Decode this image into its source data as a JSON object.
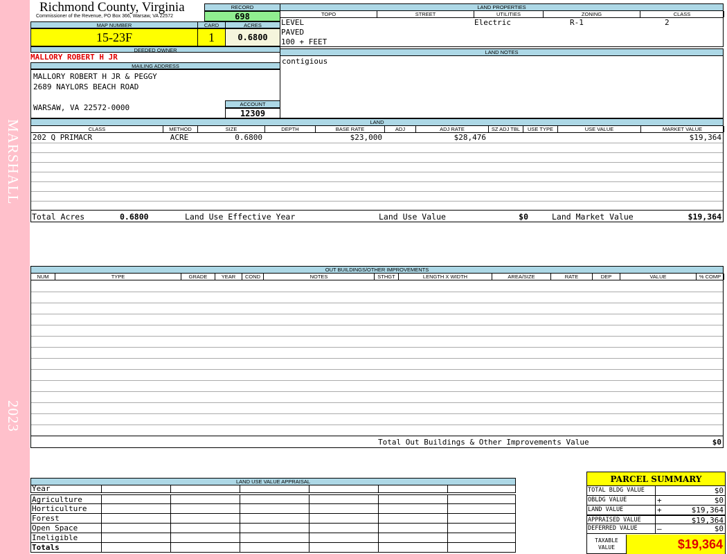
{
  "side": {
    "name": "MARSHALL",
    "year": "2023",
    "color": "#ffc0cb"
  },
  "header": {
    "title": "Richmond County, Virginia",
    "subtitle": "Commissioner of the Revenue, PO Box 366, Warsaw, VA 22572"
  },
  "record": {
    "label": "RECORD",
    "value": "698"
  },
  "map": {
    "label": "MAP NUMBER",
    "value": "15-23F",
    "card_label": "CARD",
    "card": "1",
    "acres_label": "ACRES",
    "acres": "0.6800"
  },
  "owner": {
    "label": "DEEDED OWNER",
    "value": "MALLORY ROBERT H JR"
  },
  "mailing": {
    "label": "MAILING ADDRESS",
    "lines": [
      "MALLORY ROBERT H JR & PEGGY",
      "2689 NAYLORS BEACH ROAD",
      "",
      "WARSAW, VA 22572-0000"
    ]
  },
  "account": {
    "label": "ACCOUNT",
    "value": "12309"
  },
  "land_properties": {
    "label": "LAND PROPERTIES",
    "columns": [
      "TOPO",
      "STREET",
      "UTILITIES",
      "ZONING",
      "CLASS"
    ],
    "topo": [
      "LEVEL",
      "PAVED",
      "100 + FEET"
    ],
    "utilities": "Electric",
    "zoning": "R-1",
    "class": "2"
  },
  "land_notes": {
    "label": "LAND NOTES",
    "value": "contigious"
  },
  "land": {
    "label": "LAND",
    "columns": [
      "CLASS",
      "METHOD",
      "SIZE",
      "DEPTH",
      "BASE RATE",
      "ADJ",
      "ADJ RATE",
      "SZ ADJ TBL",
      "USE TYPE",
      "USE VALUE",
      "MARKET VALUE"
    ],
    "rows": [
      [
        "202 Q PRIMACR",
        "ACRE",
        "0.6800",
        "",
        "$23,000",
        "",
        "$28,476",
        "",
        "",
        "",
        "$19,364"
      ]
    ],
    "totals": {
      "acres_label": "Total Acres",
      "acres": "0.6800",
      "eff_year_label": "Land Use Effective Year",
      "eff_year": "",
      "use_value_label": "Land Use Value",
      "use_value": "$0",
      "market_label": "Land Market Value",
      "market": "$19,364"
    }
  },
  "outbuildings": {
    "label": "OUT BUILDINGS/OTHER IMPROVEMENTS",
    "columns": [
      "NUM",
      "TYPE",
      "GRADE",
      "YEAR",
      "COND",
      "NOTES",
      "STHGT",
      "LENGTH X WIDTH",
      "AREA/SIZE",
      "RATE",
      "DEP",
      "VALUE",
      "% COMP"
    ],
    "total_label": "Total Out Buildings & Other Improvements Value",
    "total": "$0"
  },
  "land_use": {
    "label": "LAND USE VALUE APPRAISAL",
    "year_label": "Year",
    "rows": [
      "Agriculture",
      "Horticulture",
      "Forest",
      "Open Space",
      "Ineligible"
    ],
    "totals_label": "Totals"
  },
  "summary": {
    "title": "PARCEL SUMMARY",
    "rows": [
      {
        "label": "TOTAL BLDG VALUE",
        "op": "",
        "value": "$0"
      },
      {
        "label": "OBLDG VALUE",
        "op": "+",
        "value": "$0"
      },
      {
        "label": "LAND VALUE",
        "op": "+",
        "value": "$19,364"
      },
      {
        "label": "APPRAISED VALUE",
        "op": "",
        "value": "$19,364"
      },
      {
        "label": "DEFERRED VALUE",
        "op": "–",
        "value": "$0"
      }
    ],
    "taxable_label": "TAXABLE VALUE",
    "taxable": "$19,364"
  }
}
